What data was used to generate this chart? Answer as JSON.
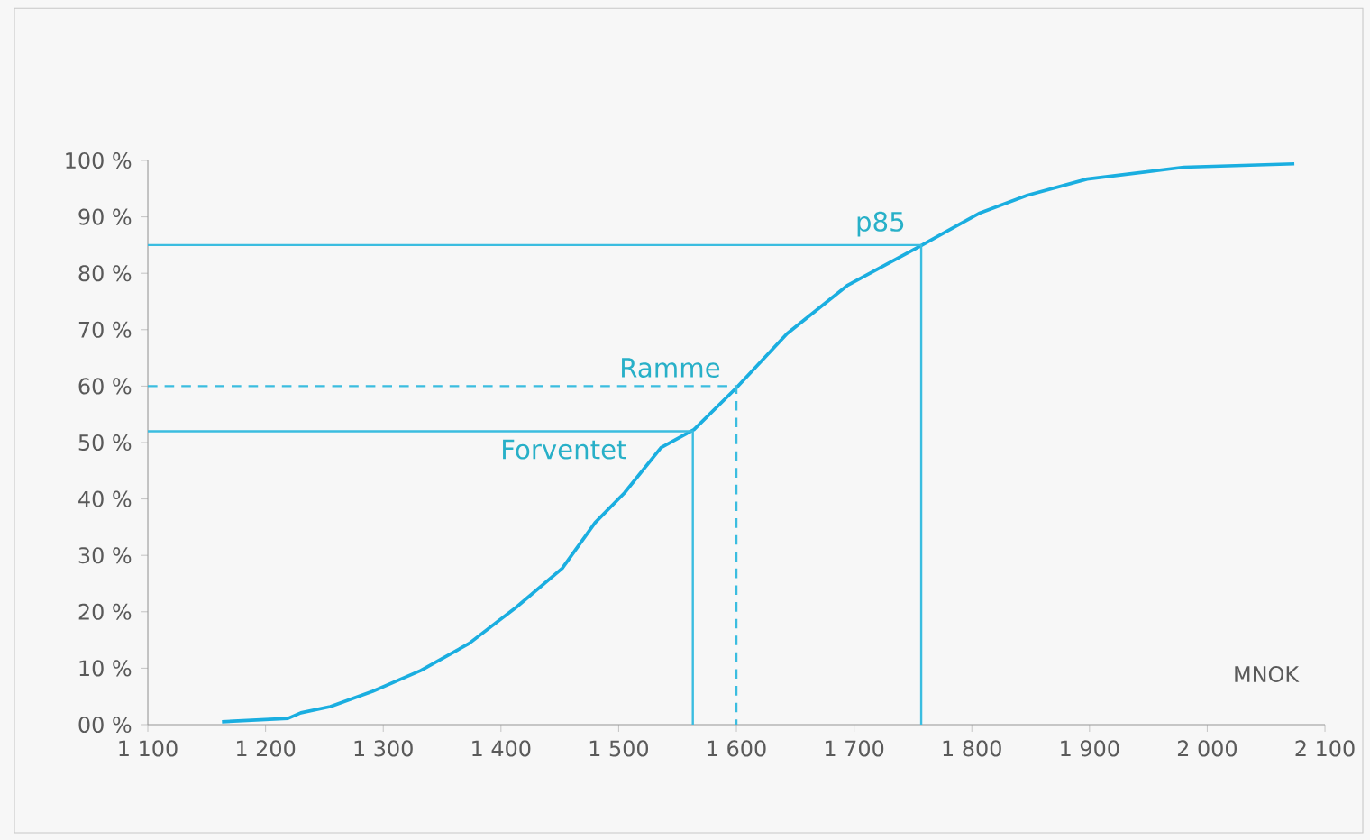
{
  "chart_data": {
    "type": "line",
    "xlabel": "MNOK",
    "xlim": [
      1100,
      2100
    ],
    "xticks": [
      {
        "value": 1100,
        "label": "1 100"
      },
      {
        "value": 1200,
        "label": "1 200"
      },
      {
        "value": 1300,
        "label": "1 300"
      },
      {
        "value": 1400,
        "label": "1 400"
      },
      {
        "value": 1500,
        "label": "1 500"
      },
      {
        "value": 1600,
        "label": "1 600"
      },
      {
        "value": 1700,
        "label": "1 700"
      },
      {
        "value": 1800,
        "label": "1 800"
      },
      {
        "value": 1900,
        "label": "1 900"
      },
      {
        "value": 2000,
        "label": "2 000"
      },
      {
        "value": 2100,
        "label": "2 100"
      }
    ],
    "ylim": [
      0,
      100
    ],
    "yticks": [
      {
        "value": 0,
        "label": "00 %"
      },
      {
        "value": 10,
        "label": "10 %"
      },
      {
        "value": 20,
        "label": "20 %"
      },
      {
        "value": 30,
        "label": "30 %"
      },
      {
        "value": 40,
        "label": "40 %"
      },
      {
        "value": 50,
        "label": "50 %"
      },
      {
        "value": 60,
        "label": "60 %"
      },
      {
        "value": 70,
        "label": "70 %"
      },
      {
        "value": 80,
        "label": "80 %"
      },
      {
        "value": 90,
        "label": "90 %"
      },
      {
        "value": 100,
        "label": "100 %"
      }
    ],
    "grid": false,
    "marker": "none",
    "series": [
      {
        "color": "#1aaee0",
        "line_style": "solid",
        "x": [
          1163,
          1219,
          1230,
          1255,
          1291,
          1332,
          1373,
          1413,
          1452,
          1480,
          1505,
          1536,
          1564,
          1600,
          1643,
          1694,
          1755,
          1806,
          1847,
          1898,
          1980,
          2074
        ],
        "values": [
          0.5,
          1.1,
          2.1,
          3.2,
          5.9,
          9.6,
          14.4,
          20.8,
          27.7,
          35.8,
          41.1,
          49.1,
          52.3,
          59.7,
          69.3,
          77.8,
          84.7,
          90.6,
          93.8,
          96.7,
          98.8,
          99.4
        ]
      },
      {
        "color": "#3bbde0",
        "line_style": "solid",
        "x": [
          1100,
          1563,
          1563
        ],
        "values": [
          52,
          52,
          0
        ]
      },
      {
        "color": "#3bbde0",
        "line_style": "dashed",
        "x": [
          1100,
          1600,
          1600
        ],
        "values": [
          60,
          60,
          0
        ]
      },
      {
        "color": "#3bbde0",
        "line_style": "solid",
        "x": [
          1100,
          1757,
          1757
        ],
        "values": [
          85,
          85,
          0
        ]
      }
    ],
    "annotations": [
      "Forventet",
      "Ramme",
      "p85"
    ]
  }
}
